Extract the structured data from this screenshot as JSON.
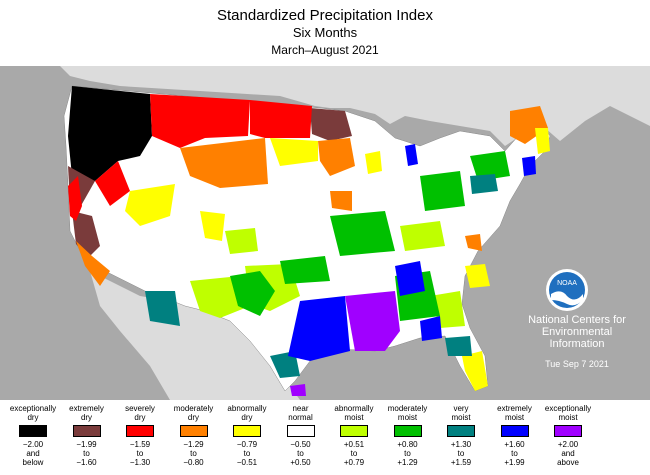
{
  "title": {
    "line1": "Standardized Precipitation Index",
    "line2": "Six Months",
    "line3": "March–August 2021"
  },
  "credit": {
    "logo_text": "NOAA",
    "line1": "National Centers for",
    "line2": "Environmental",
    "line3": "Information",
    "date": "Tue Sep  7 2021"
  },
  "colors": {
    "ocean": "#a9a9a9",
    "land_other": "#dcdcdc",
    "white_state": "#ffffff"
  },
  "legend": [
    {
      "label": "exceptionally\ndry",
      "range": "−2.00\nand\nbelow",
      "color": "#000000"
    },
    {
      "label": "extremely\ndry",
      "range": "−1.99\nto\n−1.60",
      "color": "#7a3b3b"
    },
    {
      "label": "severely\ndry",
      "range": "−1.59\nto\n−1.30",
      "color": "#ff0000"
    },
    {
      "label": "moderately\ndry",
      "range": "−1.29\nto\n−0.80",
      "color": "#ff8000"
    },
    {
      "label": "abnormally\ndry",
      "range": "−0.79\nto\n−0.51",
      "color": "#ffff00"
    },
    {
      "label": "near\nnormal",
      "range": "−0.50\nto\n+0.50",
      "color": "#ffffff"
    },
    {
      "label": "abnormally\nmoist",
      "range": "+0.51\nto\n+0.79",
      "color": "#bfff00"
    },
    {
      "label": "moderately\nmoist",
      "range": "+0.80\nto\n+1.29",
      "color": "#00c000"
    },
    {
      "label": "very\nmoist",
      "range": "+1.30\nto\n+1.59",
      "color": "#008080"
    },
    {
      "label": "extremely\nmoist",
      "range": "+1.60\nto\n+1.99",
      "color": "#0000ff"
    },
    {
      "label": "exceptionally\nmoist",
      "range": "+2.00\nand\nabove",
      "color": "#a000ff"
    }
  ]
}
